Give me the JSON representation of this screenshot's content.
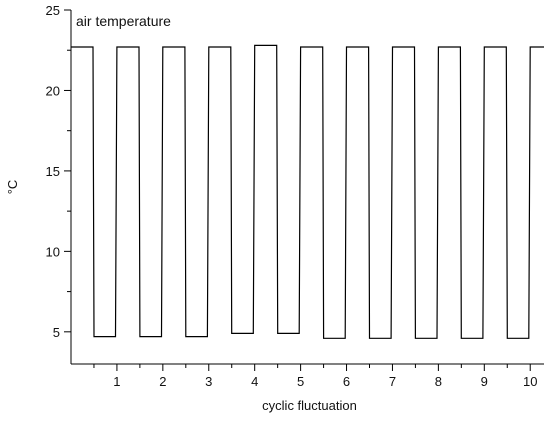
{
  "chart_data": {
    "type": "line",
    "annotation": "air temperature",
    "xlabel": "cyclic fluctuation",
    "ylabel": "°C",
    "xlim": [
      0,
      10.3
    ],
    "ylim": [
      3,
      25
    ],
    "x_ticks": [
      1,
      2,
      3,
      4,
      5,
      6,
      7,
      8,
      9,
      10
    ],
    "y_ticks": [
      5,
      10,
      15,
      20,
      25
    ],
    "grid": false,
    "legend": "none",
    "line_color": "#000000",
    "series": [
      {
        "x": [
          0.0,
          0.48,
          0.5,
          0.97,
          1.0,
          1.48,
          1.5,
          1.97,
          2.0,
          2.48,
          2.5,
          2.97,
          3.0,
          3.48,
          3.5,
          3.97,
          4.0,
          4.48,
          4.5,
          4.97,
          5.0,
          5.48,
          5.5,
          5.97,
          6.0,
          6.48,
          6.5,
          6.97,
          7.0,
          7.48,
          7.5,
          7.97,
          8.0,
          8.48,
          8.5,
          8.97,
          9.0,
          9.48,
          9.5,
          9.97,
          10.0,
          10.3
        ],
        "y": [
          22.7,
          22.7,
          4.7,
          4.7,
          22.7,
          22.7,
          4.7,
          4.7,
          22.7,
          22.7,
          4.7,
          4.7,
          22.7,
          22.7,
          4.9,
          4.9,
          22.8,
          22.8,
          4.9,
          4.9,
          22.7,
          22.7,
          4.6,
          4.6,
          22.7,
          22.7,
          4.6,
          4.6,
          22.7,
          22.7,
          4.6,
          4.6,
          22.7,
          22.7,
          4.6,
          4.6,
          22.7,
          22.7,
          4.6,
          4.6,
          22.7,
          22.7
        ]
      }
    ]
  }
}
